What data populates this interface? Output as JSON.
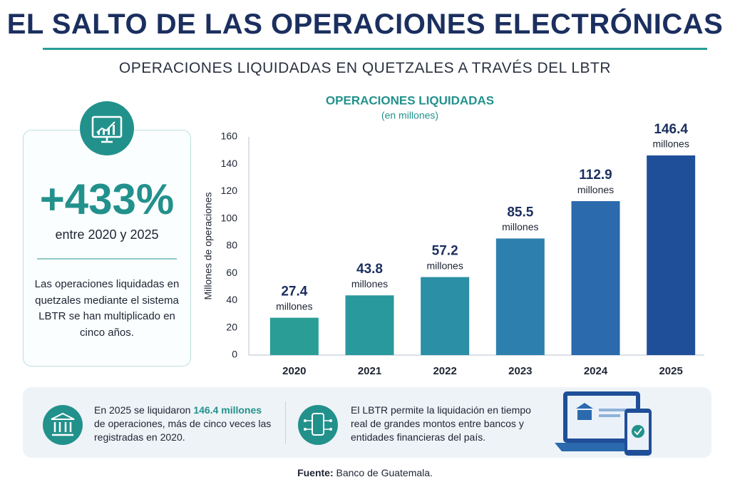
{
  "header": {
    "title": "EL SALTO DE LAS OPERACIONES ELECTRÓNICAS",
    "subtitle": "OPERACIONES LIQUIDADAS EN QUETZALES A TRAVÉS DEL LBTR"
  },
  "highlight": {
    "value": "+433%",
    "caption": "entre 2020 y 2025",
    "description": "Las operaciones liquidadas en quetzales mediante el sistema LBTR se han multiplicado en cinco años."
  },
  "chart_data": {
    "type": "bar",
    "title": "OPERACIONES LIQUIDADAS",
    "subtitle": "(en millones)",
    "y_label": "Millones de operaciones",
    "categories": [
      "2020",
      "2021",
      "2022",
      "2023",
      "2024",
      "2025"
    ],
    "values": [
      27.4,
      43.8,
      57.2,
      85.5,
      112.9,
      146.4
    ],
    "value_unit": "millones",
    "colors": [
      "#2a9d96",
      "#2a999d",
      "#2b8fa5",
      "#2d80ad",
      "#2a6aad",
      "#1f4f98"
    ],
    "ylim": [
      0,
      160
    ],
    "yticks": [
      0,
      20,
      40,
      60,
      80,
      100,
      120,
      140,
      160
    ],
    "grid": false
  },
  "notes": [
    {
      "parts": [
        "En 2025 se liquidaron ",
        "146.4 millones",
        " de operaciones, más de cinco veces las registradas en 2020."
      ]
    },
    {
      "parts": [
        "El LBTR permite la liquidación en tiempo real de grandes montos entre bancos y entidades financieras del país."
      ]
    }
  ],
  "source": {
    "label": "Fuente:",
    "text": " Banco de Guatemala."
  }
}
